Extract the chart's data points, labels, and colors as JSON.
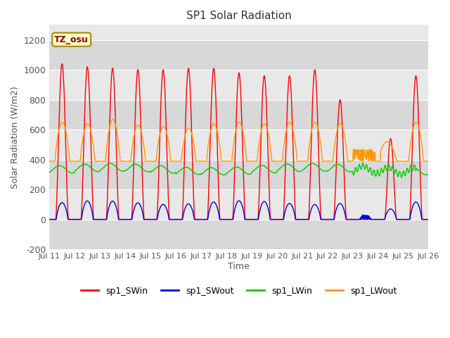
{
  "title": "SP1 Solar Radiation",
  "xlabel": "Time",
  "ylabel": "Solar Radiation (W/m2)",
  "annotation": "TZ_osu",
  "ylim": [
    -200,
    1300
  ],
  "yticks": [
    -200,
    0,
    200,
    400,
    600,
    800,
    1000,
    1200
  ],
  "x_tick_labels": [
    "Jul 11",
    "Jul 12",
    "Jul 13",
    "Jul 14",
    "Jul 15",
    "Jul 16",
    "Jul 17",
    "Jul 18",
    "Jul 19",
    "Jul 20",
    "Jul 21",
    "Jul 22",
    "Jul 23",
    "Jul 24",
    "Jul 25",
    "Jul 26"
  ],
  "colors": {
    "SWin": "#ff0000",
    "SWout": "#0000dd",
    "LWin": "#00cc00",
    "LWout": "#ff9900"
  },
  "legend_labels": [
    "sp1_SWin",
    "sp1_SWout",
    "sp1_LWin",
    "sp1_LWout"
  ],
  "fig_bg_color": "#ffffff",
  "plot_bg_color": "#f0f0f0",
  "band_light": "#e8e8e8",
  "band_dark": "#d8d8d8",
  "grid_color": "#ffffff"
}
